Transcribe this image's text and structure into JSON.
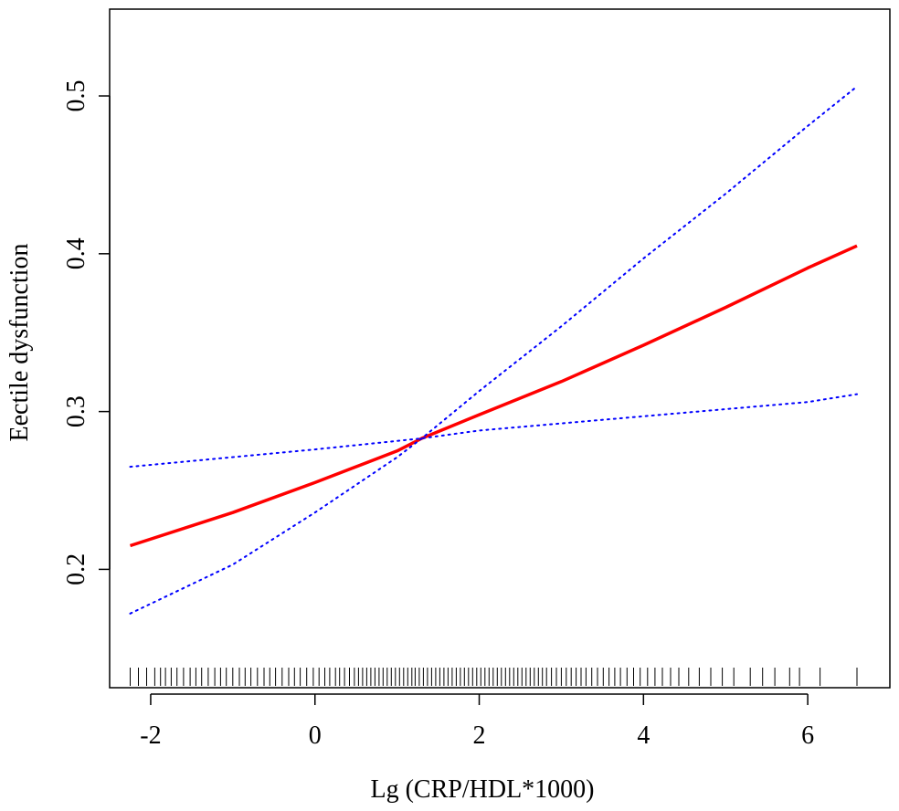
{
  "chart_data": {
    "type": "line",
    "xlabel": "Lg (CRP/HDL*1000)",
    "ylabel": "Eectile dysfunction",
    "xlim": [
      -2.5,
      7.0
    ],
    "ylim": [
      0.125,
      0.555
    ],
    "x_ticks": [
      -2,
      0,
      2,
      4,
      6
    ],
    "x_tick_labels": [
      "-2",
      "0",
      "2",
      "4",
      "6"
    ],
    "y_ticks": [
      0.2,
      0.3,
      0.4,
      0.5
    ],
    "y_tick_labels": [
      "0.2",
      "0.3",
      "0.4",
      "0.5"
    ],
    "grid": false,
    "series": [
      {
        "role": "estimate",
        "style": "solid",
        "color": "#ff0000",
        "x": [
          -2.25,
          -1,
          0,
          1,
          1.3,
          2,
          3,
          4,
          5,
          6,
          6.6
        ],
        "y": [
          0.215,
          0.236,
          0.255,
          0.275,
          0.283,
          0.298,
          0.319,
          0.342,
          0.366,
          0.391,
          0.405
        ]
      },
      {
        "role": "upper_ci",
        "style": "dotted",
        "color": "#0000ff",
        "x": [
          -2.25,
          0,
          1.3,
          2,
          4,
          6,
          6.6
        ],
        "y": [
          0.265,
          0.276,
          0.283,
          0.288,
          0.297,
          0.306,
          0.311
        ]
      },
      {
        "role": "lower_ci",
        "style": "dotted",
        "color": "#0000ff",
        "x": [
          -2.25,
          -1,
          0,
          1,
          1.3,
          2,
          3,
          4,
          5,
          6,
          6.6
        ],
        "y": [
          0.172,
          0.203,
          0.236,
          0.271,
          0.283,
          0.313,
          0.354,
          0.397,
          0.438,
          0.481,
          0.506
        ]
      }
    ],
    "rug_x": [
      -2.25,
      -2.15,
      -2.05,
      -1.95,
      -1.88,
      -1.82,
      -1.75,
      -1.68,
      -1.6,
      -1.52,
      -1.45,
      -1.38,
      -1.3,
      -1.22,
      -1.15,
      -1.08,
      -1.0,
      -0.92,
      -0.85,
      -0.78,
      -0.7,
      -0.62,
      -0.55,
      -0.48,
      -0.4,
      -0.32,
      -0.25,
      -0.18,
      -0.1,
      -0.02,
      0.05,
      0.12,
      0.18,
      0.25,
      0.3,
      0.36,
      0.42,
      0.48,
      0.53,
      0.58,
      0.63,
      0.68,
      0.73,
      0.78,
      0.83,
      0.88,
      0.93,
      0.98,
      1.03,
      1.08,
      1.13,
      1.18,
      1.22,
      1.27,
      1.32,
      1.37,
      1.42,
      1.47,
      1.52,
      1.57,
      1.62,
      1.67,
      1.72,
      1.77,
      1.82,
      1.87,
      1.92,
      1.97,
      2.02,
      2.07,
      2.12,
      2.17,
      2.22,
      2.27,
      2.32,
      2.37,
      2.42,
      2.47,
      2.52,
      2.57,
      2.62,
      2.67,
      2.72,
      2.77,
      2.82,
      2.88,
      2.94,
      3.0,
      3.06,
      3.12,
      3.18,
      3.24,
      3.3,
      3.37,
      3.44,
      3.51,
      3.58,
      3.65,
      3.72,
      3.8,
      3.88,
      3.96,
      4.05,
      4.14,
      4.23,
      4.33,
      4.43,
      4.55,
      4.68,
      4.82,
      4.96,
      5.1,
      5.3,
      5.45,
      5.6,
      5.78,
      5.9,
      6.15,
      6.6
    ]
  }
}
